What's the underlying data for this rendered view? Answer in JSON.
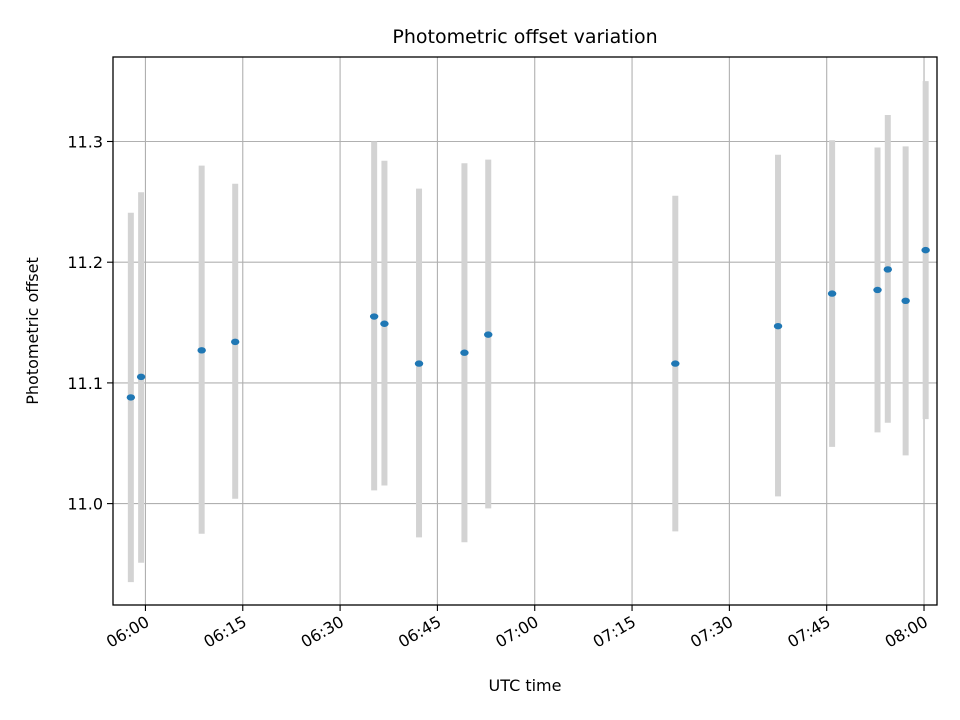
{
  "chart_data": {
    "type": "scatter",
    "title": "Photometric offset variation",
    "xlabel": "UTC time",
    "ylabel": "Photometric offset",
    "x_tick_labels": [
      "06:00",
      "06:15",
      "06:30",
      "06:45",
      "07:00",
      "07:15",
      "07:30",
      "07:45",
      "08:00"
    ],
    "y_tick_labels": [
      "11.0",
      "11.1",
      "11.2",
      "11.3"
    ],
    "xlim": [
      "05:55",
      "08:02"
    ],
    "ylim": [
      10.916,
      11.37
    ],
    "grid": true,
    "legend": "none",
    "colors": {
      "point": "#1f77b4",
      "errorbar": "#d3d3d3",
      "grid": "#b0b0b0"
    },
    "series": [
      {
        "points": [
          {
            "x": "05:57:45",
            "y": 11.088,
            "yerr_low": 10.935,
            "yerr_high": 11.241
          },
          {
            "x": "05:59:20",
            "y": 11.105,
            "yerr_low": 10.951,
            "yerr_high": 11.258
          },
          {
            "x": "06:08:40",
            "y": 11.127,
            "yerr_low": 10.975,
            "yerr_high": 11.28
          },
          {
            "x": "06:13:50",
            "y": 11.134,
            "yerr_low": 11.004,
            "yerr_high": 11.265
          },
          {
            "x": "06:35:15",
            "y": 11.155,
            "yerr_low": 11.011,
            "yerr_high": 11.3
          },
          {
            "x": "06:36:50",
            "y": 11.149,
            "yerr_low": 11.015,
            "yerr_high": 11.284
          },
          {
            "x": "06:42:10",
            "y": 11.116,
            "yerr_low": 10.972,
            "yerr_high": 11.261
          },
          {
            "x": "06:49:10",
            "y": 11.125,
            "yerr_low": 10.968,
            "yerr_high": 11.282
          },
          {
            "x": "06:52:50",
            "y": 11.14,
            "yerr_low": 10.996,
            "yerr_high": 11.285
          },
          {
            "x": "07:21:40",
            "y": 11.116,
            "yerr_low": 10.977,
            "yerr_high": 11.255
          },
          {
            "x": "07:37:30",
            "y": 11.147,
            "yerr_low": 11.006,
            "yerr_high": 11.289
          },
          {
            "x": "07:45:50",
            "y": 11.174,
            "yerr_low": 11.047,
            "yerr_high": 11.301
          },
          {
            "x": "07:52:50",
            "y": 11.177,
            "yerr_low": 11.059,
            "yerr_high": 11.295
          },
          {
            "x": "07:54:25",
            "y": 11.194,
            "yerr_low": 11.067,
            "yerr_high": 11.322
          },
          {
            "x": "07:57:10",
            "y": 11.168,
            "yerr_low": 11.04,
            "yerr_high": 11.296
          },
          {
            "x": "08:00:15",
            "y": 11.21,
            "yerr_low": 11.07,
            "yerr_high": 11.35
          }
        ]
      }
    ]
  }
}
